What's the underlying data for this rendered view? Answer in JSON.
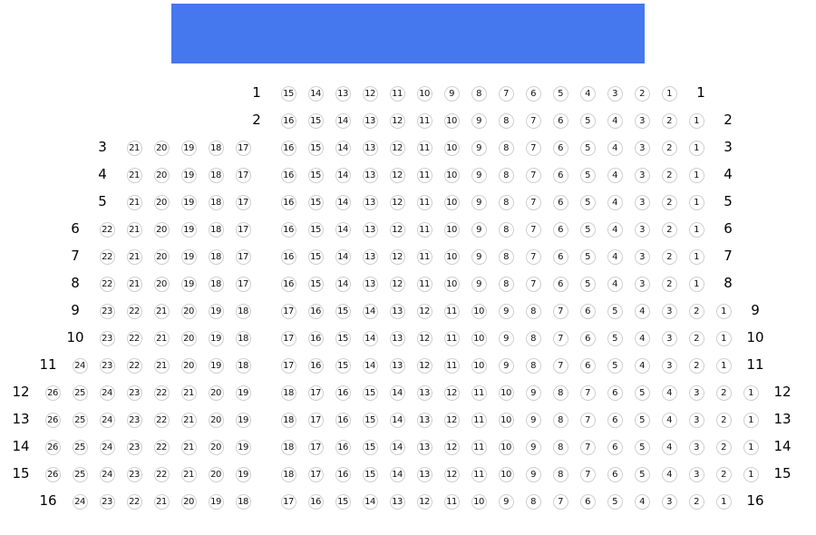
{
  "stage": {
    "color": "#4577ee"
  },
  "rows": [
    {
      "label": "1",
      "left": [],
      "right": [
        15,
        14,
        13,
        12,
        11,
        10,
        9,
        8,
        7,
        6,
        5,
        4,
        3,
        2,
        1
      ]
    },
    {
      "label": "2",
      "left": [],
      "right": [
        16,
        15,
        14,
        13,
        12,
        11,
        10,
        9,
        8,
        7,
        6,
        5,
        4,
        3,
        2,
        1
      ]
    },
    {
      "label": "3",
      "left": [
        21,
        20,
        19,
        18,
        17
      ],
      "right": [
        16,
        15,
        14,
        13,
        12,
        11,
        10,
        9,
        8,
        7,
        6,
        5,
        4,
        3,
        2,
        1
      ]
    },
    {
      "label": "4",
      "left": [
        21,
        20,
        19,
        18,
        17
      ],
      "right": [
        16,
        15,
        14,
        13,
        12,
        11,
        10,
        9,
        8,
        7,
        6,
        5,
        4,
        3,
        2,
        1
      ]
    },
    {
      "label": "5",
      "left": [
        21,
        20,
        19,
        18,
        17
      ],
      "right": [
        16,
        15,
        14,
        13,
        12,
        11,
        10,
        9,
        8,
        7,
        6,
        5,
        4,
        3,
        2,
        1
      ]
    },
    {
      "label": "6",
      "left": [
        22,
        21,
        20,
        19,
        18,
        17
      ],
      "right": [
        16,
        15,
        14,
        13,
        12,
        11,
        10,
        9,
        8,
        7,
        6,
        5,
        4,
        3,
        2,
        1
      ]
    },
    {
      "label": "7",
      "left": [
        22,
        21,
        20,
        19,
        18,
        17
      ],
      "right": [
        16,
        15,
        14,
        13,
        12,
        11,
        10,
        9,
        8,
        7,
        6,
        5,
        4,
        3,
        2,
        1
      ]
    },
    {
      "label": "8",
      "left": [
        22,
        21,
        20,
        19,
        18,
        17
      ],
      "right": [
        16,
        15,
        14,
        13,
        12,
        11,
        10,
        9,
        8,
        7,
        6,
        5,
        4,
        3,
        2,
        1
      ]
    },
    {
      "label": "9",
      "left": [
        23,
        22,
        21,
        20,
        19,
        18
      ],
      "right": [
        17,
        16,
        15,
        14,
        13,
        12,
        11,
        10,
        9,
        8,
        7,
        6,
        5,
        4,
        3,
        2,
        1
      ]
    },
    {
      "label": "10",
      "left": [
        23,
        22,
        21,
        20,
        19,
        18
      ],
      "right": [
        17,
        16,
        15,
        14,
        13,
        12,
        11,
        10,
        9,
        8,
        7,
        6,
        5,
        4,
        3,
        2,
        1
      ]
    },
    {
      "label": "11",
      "left": [
        24,
        23,
        22,
        21,
        20,
        19,
        18
      ],
      "right": [
        17,
        16,
        15,
        14,
        13,
        12,
        11,
        10,
        9,
        8,
        7,
        6,
        5,
        4,
        3,
        2,
        1
      ]
    },
    {
      "label": "12",
      "left": [
        26,
        25,
        24,
        23,
        22,
        21,
        20,
        19
      ],
      "right": [
        18,
        17,
        16,
        15,
        14,
        13,
        12,
        11,
        10,
        9,
        8,
        7,
        6,
        5,
        4,
        3,
        2,
        1
      ]
    },
    {
      "label": "13",
      "left": [
        26,
        25,
        24,
        23,
        22,
        21,
        20,
        19
      ],
      "right": [
        18,
        17,
        16,
        15,
        14,
        13,
        12,
        11,
        10,
        9,
        8,
        7,
        6,
        5,
        4,
        3,
        2,
        1
      ]
    },
    {
      "label": "14",
      "left": [
        26,
        25,
        24,
        23,
        22,
        21,
        20,
        19
      ],
      "right": [
        18,
        17,
        16,
        15,
        14,
        13,
        12,
        11,
        10,
        9,
        8,
        7,
        6,
        5,
        4,
        3,
        2,
        1
      ]
    },
    {
      "label": "15",
      "left": [
        26,
        25,
        24,
        23,
        22,
        21,
        20,
        19
      ],
      "right": [
        18,
        17,
        16,
        15,
        14,
        13,
        12,
        11,
        10,
        9,
        8,
        7,
        6,
        5,
        4,
        3,
        2,
        1
      ]
    },
    {
      "label": "16",
      "left": [
        24,
        23,
        22,
        21,
        20,
        19,
        18
      ],
      "right": [
        17,
        16,
        15,
        14,
        13,
        12,
        11,
        10,
        9,
        8,
        7,
        6,
        5,
        4,
        3,
        2,
        1
      ]
    }
  ]
}
